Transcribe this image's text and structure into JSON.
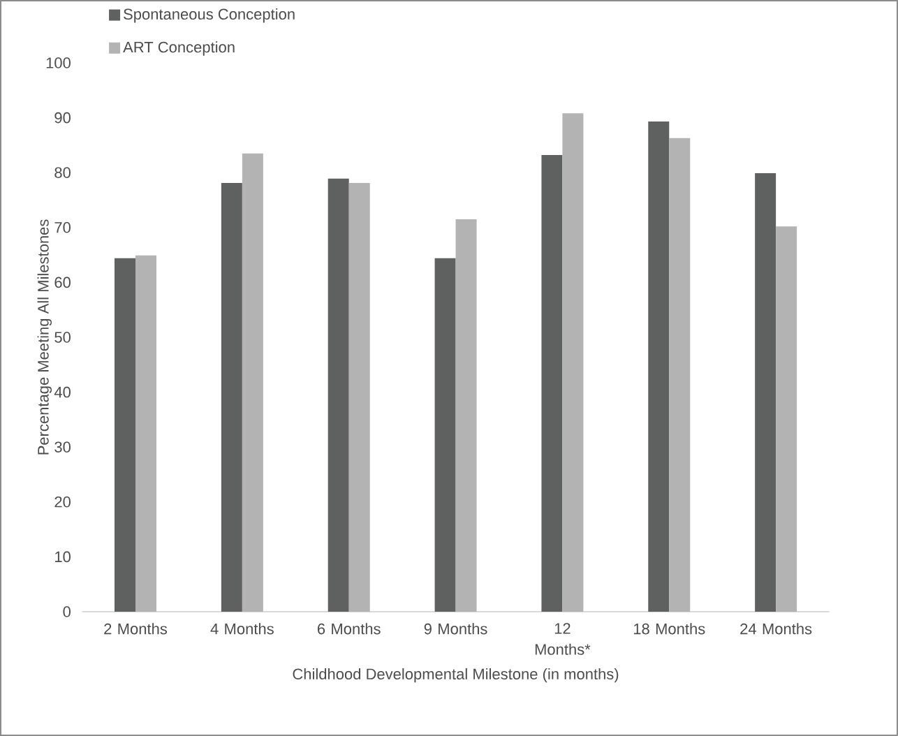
{
  "chart_data": {
    "type": "bar",
    "xlabel": "Childhood Developmental Milestone (in months)",
    "ylabel": "Percentage Meeting All Milestones",
    "categories": [
      "2 Months",
      "4 Months",
      "6 Months",
      "9 Months",
      "12 Months*",
      "18 Months",
      "24 Months"
    ],
    "series": [
      {
        "name": "Spontaneous Conception",
        "color": "#5f6160",
        "values": [
          64.4,
          78.1,
          78.9,
          64.4,
          83.2,
          89.3,
          79.9
        ]
      },
      {
        "name": "ART Conception",
        "color": "#b3b3b3",
        "values": [
          64.9,
          83.5,
          78.1,
          71.5,
          90.8,
          86.3,
          70.2
        ]
      }
    ],
    "ylim": [
      0,
      100
    ],
    "yticks": [
      0,
      10,
      20,
      30,
      40,
      50,
      60,
      70,
      80,
      90,
      100
    ],
    "legend": "top left"
  }
}
